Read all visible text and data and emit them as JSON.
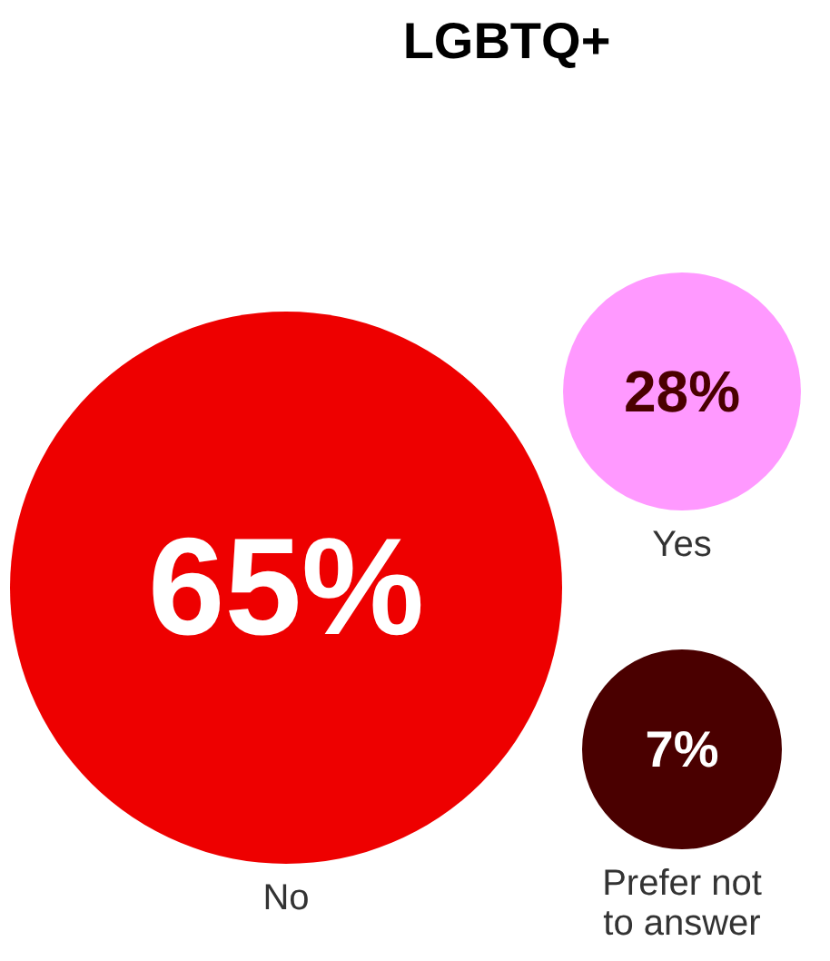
{
  "chart_data": {
    "type": "other",
    "title": "LGBTQ+",
    "categories": [
      "No",
      "Yes",
      "Prefer not to answer"
    ],
    "values": [
      65,
      28,
      7
    ],
    "value_labels": [
      "65%",
      "28%",
      "7%"
    ],
    "colors": [
      "#ee0000",
      "#ff99ff",
      "#4a0000"
    ]
  }
}
